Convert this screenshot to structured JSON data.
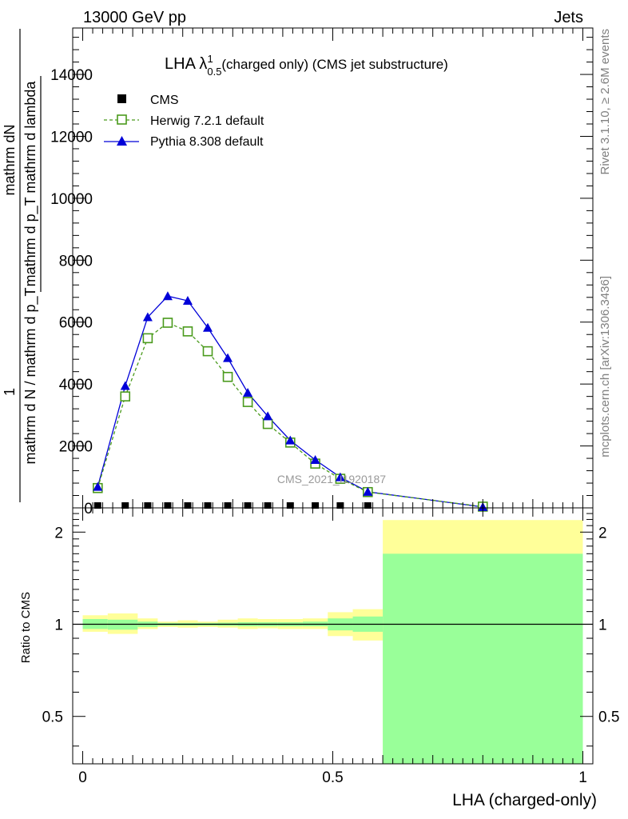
{
  "header": {
    "energy": "13000 GeV pp",
    "process": "Jets",
    "side_rivet": "Rivet 3.1.10, ≥ 2.6M events",
    "side_mcplots": "mcplots.cern.ch [arXiv:1306.3436]",
    "watermark": "CMS_2021_I1920187"
  },
  "chart_data": [
    {
      "type": "line",
      "title": "LHA λ¹₀.₅ (charged only) (CMS jet substructure)",
      "title_main": "LHA λ",
      "title_sup": "1",
      "title_sub": "0.5",
      "title_rest": " (charged only) (CMS jet substructure)",
      "ylabel_top": "mathrm dN",
      "ylabel_sub": "mathrm d p_T mathrm d lambda",
      "ylabel_mid": "1",
      "ylabel_denom": "mathrm d N / mathrm d p_T",
      "ylim": [
        0,
        15500
      ],
      "xlim": [
        -0.02,
        1.02
      ],
      "yticks": [
        0,
        2000,
        4000,
        6000,
        8000,
        10000,
        12000,
        14000
      ],
      "ytick_labels": [
        "0",
        "2000",
        "4000",
        "6000",
        "8000",
        "10000",
        "12000",
        "14000"
      ],
      "legend_position": "top-left",
      "x": [
        0.03,
        0.085,
        0.13,
        0.17,
        0.21,
        0.25,
        0.29,
        0.33,
        0.37,
        0.415,
        0.465,
        0.515,
        0.57,
        0.8
      ],
      "series": [
        {
          "name": "CMS",
          "marker": "filled-square",
          "color": "#000000",
          "values": [
            0,
            0,
            0,
            0,
            0,
            0,
            0,
            0,
            0,
            0,
            0,
            0,
            0,
            null
          ]
        },
        {
          "name": "Herwig 7.2.1 default",
          "marker": "open-square",
          "line": "dashed",
          "color": "#4a9a1c",
          "values": [
            640,
            3600,
            5480,
            5980,
            5700,
            5060,
            4230,
            3420,
            2710,
            2110,
            1430,
            940,
            510,
            40
          ]
        },
        {
          "name": "Pythia 8.308 default",
          "marker": "filled-triangle",
          "line": "solid",
          "color": "#0000d8",
          "values": [
            680,
            3940,
            6160,
            6840,
            6690,
            5820,
            4840,
            3720,
            2960,
            2180,
            1550,
            990,
            520,
            30
          ]
        }
      ]
    },
    {
      "type": "area",
      "ylabel": "Ratio to CMS",
      "xlabel": "LHA (charged-only)",
      "scale": "log",
      "ylim": [
        0.35,
        2.4
      ],
      "yticks": [
        0.5,
        1,
        2
      ],
      "ytick_labels": [
        "0.5",
        "1",
        "2"
      ],
      "xticks": [
        0,
        0.5,
        1
      ],
      "xtick_labels": [
        "0",
        "0.5",
        "1"
      ],
      "band_colors": {
        "total": "#ffff99",
        "stat": "#99ff99"
      },
      "bins": [
        {
          "lo": 0.0,
          "hi": 0.05,
          "yellow": [
            0.945,
            1.07
          ],
          "green": [
            0.965,
            1.04
          ]
        },
        {
          "lo": 0.05,
          "hi": 0.11,
          "yellow": [
            0.93,
            1.085
          ],
          "green": [
            0.96,
            1.035
          ]
        },
        {
          "lo": 0.11,
          "hi": 0.15,
          "yellow": [
            0.965,
            1.045
          ],
          "green": [
            0.98,
            1.02
          ]
        },
        {
          "lo": 0.15,
          "hi": 0.19,
          "yellow": [
            0.98,
            1.02
          ],
          "green": [
            0.99,
            1.01
          ]
        },
        {
          "lo": 0.19,
          "hi": 0.23,
          "yellow": [
            0.975,
            1.03
          ],
          "green": [
            0.99,
            1.01
          ]
        },
        {
          "lo": 0.23,
          "hi": 0.27,
          "yellow": [
            0.98,
            1.02
          ],
          "green": [
            0.99,
            1.01
          ]
        },
        {
          "lo": 0.27,
          "hi": 0.31,
          "yellow": [
            0.975,
            1.035
          ],
          "green": [
            0.988,
            1.012
          ]
        },
        {
          "lo": 0.31,
          "hi": 0.35,
          "yellow": [
            0.965,
            1.045
          ],
          "green": [
            0.985,
            1.015
          ]
        },
        {
          "lo": 0.35,
          "hi": 0.39,
          "yellow": [
            0.97,
            1.04
          ],
          "green": [
            0.985,
            1.015
          ]
        },
        {
          "lo": 0.39,
          "hi": 0.44,
          "yellow": [
            0.965,
            1.04
          ],
          "green": [
            0.985,
            1.015
          ]
        },
        {
          "lo": 0.44,
          "hi": 0.49,
          "yellow": [
            0.965,
            1.045
          ],
          "green": [
            0.985,
            1.02
          ]
        },
        {
          "lo": 0.49,
          "hi": 0.54,
          "yellow": [
            0.915,
            1.095
          ],
          "green": [
            0.955,
            1.045
          ]
        },
        {
          "lo": 0.54,
          "hi": 0.6,
          "yellow": [
            0.885,
            1.12
          ],
          "green": [
            0.945,
            1.06
          ]
        },
        {
          "lo": 0.6,
          "hi": 1.0,
          "yellow": [
            0.35,
            2.19
          ],
          "green": [
            0.35,
            1.7
          ]
        }
      ],
      "reference_line": 1
    }
  ]
}
